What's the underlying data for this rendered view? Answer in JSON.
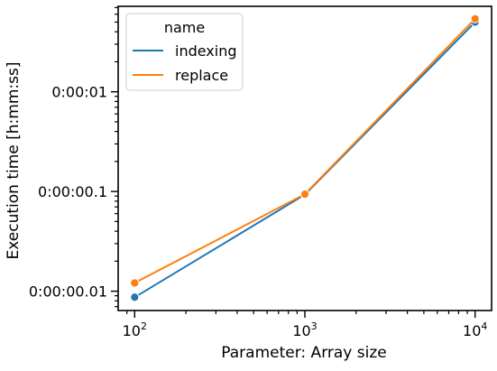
{
  "chart_data": {
    "type": "line",
    "xlabel": "Parameter: Array size",
    "ylabel": "Execution time [h:mm:ss]",
    "x_scale": "log",
    "y_scale": "log",
    "x": [
      100,
      1000,
      10000
    ],
    "xlim": [
      80,
      12500
    ],
    "ylim": [
      0.0064,
      7.2
    ],
    "x_ticks": [
      {
        "value": 100,
        "base": "10",
        "exp": "2"
      },
      {
        "value": 1000,
        "base": "10",
        "exp": "3"
      },
      {
        "value": 10000,
        "base": "10",
        "exp": "4"
      }
    ],
    "y_ticks": [
      {
        "value": 0.01,
        "label": "0:00:00.01"
      },
      {
        "value": 0.1,
        "label": "0:00:00.1"
      },
      {
        "value": 1,
        "label": "0:00:01"
      }
    ],
    "legend_title": "name",
    "legend_position": "top-left",
    "series": [
      {
        "name": "indexing",
        "color": "#1f77b4",
        "values": [
          0.0087,
          0.093,
          5.0
        ]
      },
      {
        "name": "replace",
        "color": "#ff7f0e",
        "values": [
          0.0121,
          0.094,
          5.4
        ]
      }
    ]
  }
}
